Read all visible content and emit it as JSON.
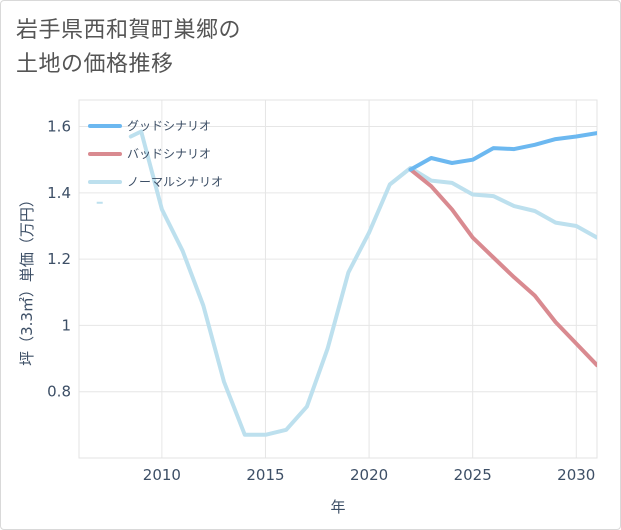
{
  "title": {
    "line1": "岩手県西和賀町巣郷の",
    "line2": "土地の価格推移"
  },
  "chart_data": {
    "type": "line",
    "title": "岩手県西和賀町巣郷の土地の価格推移",
    "xlabel": "年",
    "ylabel": "坪（3.3㎡）単価（万円）",
    "xlim": [
      2006,
      2031
    ],
    "ylim": [
      0.6,
      1.68
    ],
    "x_ticks": [
      "2010",
      "2015",
      "2020",
      "2025",
      "2030"
    ],
    "y_ticks": [
      "0.8",
      "1",
      "1.2",
      "1.4",
      "1.6"
    ],
    "legend_position": "top-left",
    "grid": true,
    "series": [
      {
        "name": "グッドシナリオ",
        "color": "#6cb8f0",
        "points": [
          [
            2022,
            1.47
          ],
          [
            2023,
            1.505
          ],
          [
            2024,
            1.49
          ],
          [
            2025,
            1.5
          ],
          [
            2026,
            1.535
          ],
          [
            2027,
            1.532
          ],
          [
            2028,
            1.545
          ],
          [
            2029,
            1.562
          ],
          [
            2030,
            1.57
          ],
          [
            2031,
            1.58
          ]
        ]
      },
      {
        "name": "バッドシナリオ",
        "color": "#d98a90",
        "points": [
          [
            2022,
            1.47
          ],
          [
            2023,
            1.42
          ],
          [
            2024,
            1.35
          ],
          [
            2025,
            1.265
          ],
          [
            2026,
            1.205
          ],
          [
            2027,
            1.145
          ],
          [
            2028,
            1.09
          ],
          [
            2029,
            1.01
          ],
          [
            2030,
            0.945
          ],
          [
            2031,
            0.88
          ]
        ]
      },
      {
        "name": "ノーマルシナリオ",
        "color": "#bde0ee",
        "points": [
          [
            2008.5,
            1.57
          ],
          [
            2009,
            1.585
          ],
          [
            2010,
            1.35
          ],
          [
            2011,
            1.225
          ],
          [
            2012,
            1.06
          ],
          [
            2013,
            0.83
          ],
          [
            2014,
            0.67
          ],
          [
            2015,
            0.67
          ],
          [
            2016,
            0.685
          ],
          [
            2017,
            0.755
          ],
          [
            2018,
            0.93
          ],
          [
            2019,
            1.16
          ],
          [
            2020,
            1.28
          ],
          [
            2021,
            1.425
          ],
          [
            2022,
            1.475
          ],
          [
            2023,
            1.437
          ],
          [
            2024,
            1.43
          ],
          [
            2025,
            1.395
          ],
          [
            2026,
            1.39
          ],
          [
            2027,
            1.36
          ],
          [
            2028,
            1.345
          ],
          [
            2029,
            1.31
          ],
          [
            2030,
            1.3
          ],
          [
            2031,
            1.265
          ]
        ],
        "extra_points": [
          [
            2007,
            1.37
          ]
        ]
      }
    ]
  }
}
